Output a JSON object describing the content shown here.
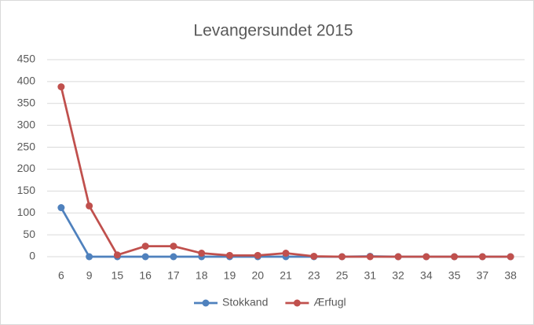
{
  "chart_data": {
    "type": "line",
    "title": "Levangersundet 2015",
    "categories": [
      "6",
      "9",
      "15",
      "16",
      "17",
      "18",
      "19",
      "20",
      "21",
      "23",
      "25",
      "31",
      "32",
      "34",
      "35",
      "37",
      "38"
    ],
    "series": [
      {
        "name": "Stokkand",
        "color": "#4f81bd",
        "values": [
          112,
          0,
          0,
          0,
          0,
          0,
          0,
          0,
          0,
          0,
          0,
          1,
          0,
          0,
          0,
          0,
          0
        ]
      },
      {
        "name": "Ærfugl",
        "color": "#c0504d",
        "values": [
          388,
          116,
          4,
          24,
          24,
          8,
          3,
          3,
          8,
          1,
          0,
          0,
          0,
          0,
          0,
          0,
          0
        ]
      }
    ],
    "ylim": [
      0,
      450
    ],
    "yticks": [
      0,
      50,
      100,
      150,
      200,
      250,
      300,
      350,
      400,
      450
    ],
    "grid": true,
    "legend": "bottom"
  }
}
